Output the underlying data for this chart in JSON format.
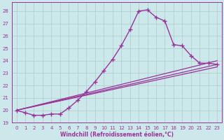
{
  "xlabel": "Windchill (Refroidissement éolien,°C)",
  "bg_color": "#cce8ea",
  "grid_color": "#aacccc",
  "line_color": "#993399",
  "xlim": [
    -0.5,
    23.5
  ],
  "ylim": [
    19,
    28.7
  ],
  "yticks": [
    19,
    20,
    21,
    22,
    23,
    24,
    25,
    26,
    27,
    28
  ],
  "xticks": [
    0,
    1,
    2,
    3,
    4,
    5,
    6,
    7,
    8,
    9,
    10,
    11,
    12,
    13,
    14,
    15,
    16,
    17,
    18,
    19,
    20,
    21,
    22,
    23
  ],
  "curve1_x": [
    0,
    1,
    2,
    3,
    4,
    5,
    6,
    7,
    8,
    9,
    10,
    11,
    12,
    13,
    14,
    15,
    16,
    17,
    18,
    19,
    20,
    21,
    22,
    23
  ],
  "curve1_y": [
    20.0,
    19.8,
    19.6,
    19.6,
    19.7,
    19.7,
    20.2,
    20.8,
    21.5,
    22.3,
    23.2,
    24.1,
    25.2,
    26.5,
    28.0,
    28.1,
    27.5,
    27.2,
    25.3,
    25.2,
    24.4,
    23.8,
    23.8,
    23.7
  ],
  "line1_x": [
    0,
    23
  ],
  "line1_y": [
    20.0,
    24.0
  ],
  "line2_x": [
    0,
    23
  ],
  "line2_y": [
    20.0,
    23.5
  ],
  "line3_x": [
    0,
    23
  ],
  "line3_y": [
    20.0,
    23.7
  ]
}
